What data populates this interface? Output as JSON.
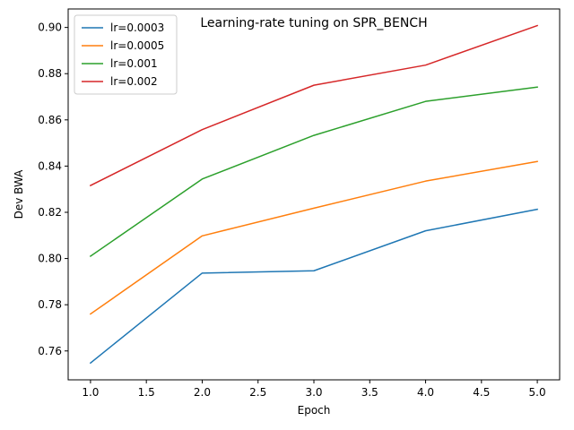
{
  "chart_data": {
    "type": "line",
    "title": "Learning-rate tuning on SPR_BENCH",
    "xlabel": "Epoch",
    "ylabel": "Dev BWA",
    "x": [
      1,
      2,
      3,
      4,
      5
    ],
    "xlim": [
      0.8,
      5.2
    ],
    "ylim": [
      0.7475,
      0.908
    ],
    "xticks": [
      1.0,
      1.5,
      2.0,
      2.5,
      3.0,
      3.5,
      4.0,
      4.5,
      5.0
    ],
    "xtick_labels": [
      "1.0",
      "1.5",
      "2.0",
      "2.5",
      "3.0",
      "3.5",
      "4.0",
      "4.5",
      "5.0"
    ],
    "yticks": [
      0.76,
      0.78,
      0.8,
      0.82,
      0.84,
      0.86,
      0.88,
      0.9
    ],
    "ytick_labels": [
      "0.76",
      "0.78",
      "0.80",
      "0.82",
      "0.84",
      "0.86",
      "0.88",
      "0.90"
    ],
    "grid": false,
    "legend_position": "top-left",
    "series": [
      {
        "name": "lr=0.0003",
        "color": "#1f77b4",
        "values": [
          0.7548,
          0.7937,
          0.7947,
          0.812,
          0.8213
        ]
      },
      {
        "name": "lr=0.0005",
        "color": "#ff7f0e",
        "values": [
          0.776,
          0.8098,
          0.8218,
          0.8335,
          0.842
        ]
      },
      {
        "name": "lr=0.001",
        "color": "#2ca02c",
        "values": [
          0.801,
          0.8344,
          0.8533,
          0.868,
          0.8742
        ]
      },
      {
        "name": "lr=0.002",
        "color": "#d62728",
        "values": [
          0.8316,
          0.8558,
          0.875,
          0.8837,
          0.9008
        ]
      }
    ]
  }
}
